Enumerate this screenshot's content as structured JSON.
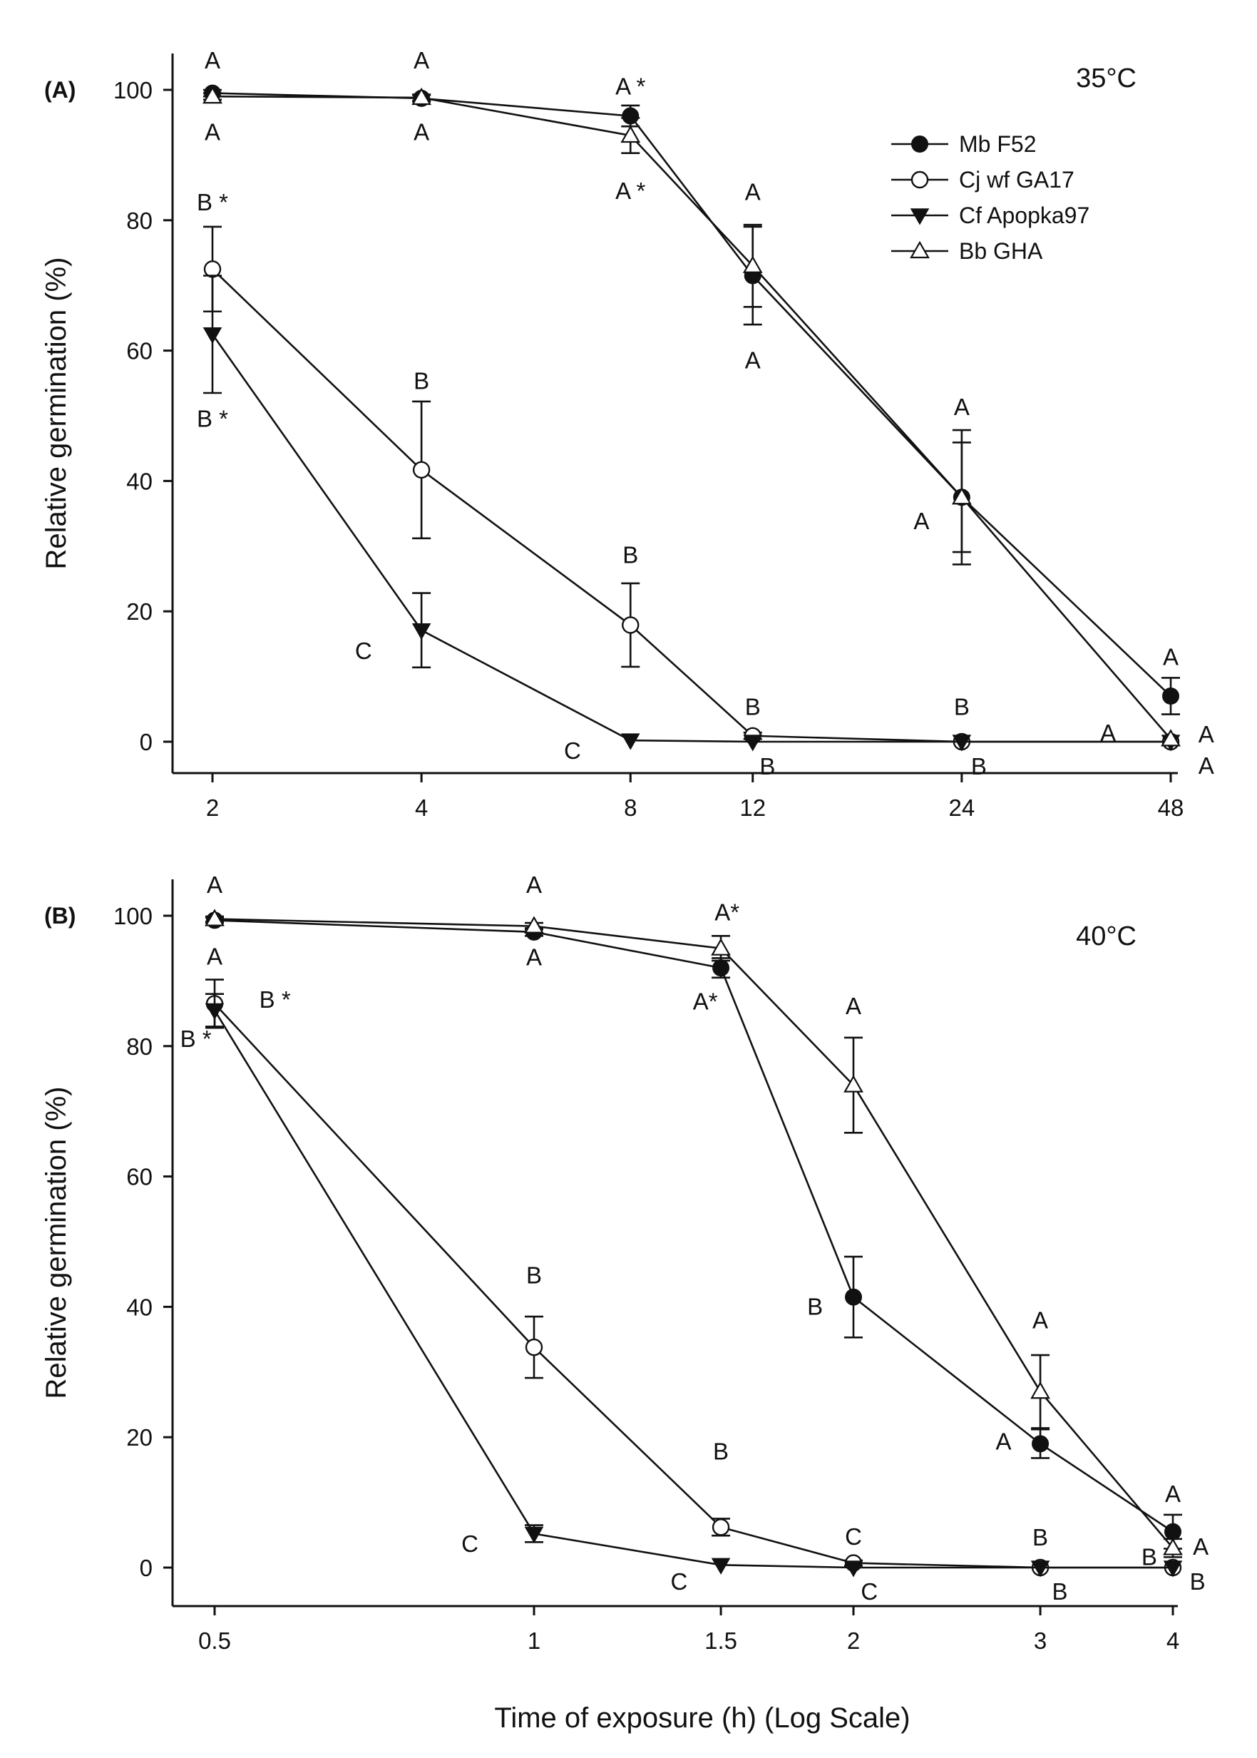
{
  "figure": {
    "xlabel": "Time of exposure (h) (Log Scale)",
    "legend": {
      "position": "top-right of panel A",
      "entries": [
        {
          "name": "Mb F52",
          "marker": "filled-circle"
        },
        {
          "name": "Cj wf GA17",
          "marker": "open-circle"
        },
        {
          "name": "Cf Apopka97",
          "marker": "filled-triangle-down"
        },
        {
          "name": "Bb GHA",
          "marker": "open-triangle-up"
        }
      ]
    }
  },
  "chart_data": [
    {
      "type": "line",
      "panel_label": "(A)",
      "temperature": "35°C",
      "ylabel": "Relative germination (%)",
      "xscale": "log",
      "xlim": [
        1.78,
        57
      ],
      "ylim": [
        -5,
        104
      ],
      "x": [
        2,
        4,
        8,
        12,
        24,
        48
      ],
      "x_tick_labels": [
        "2",
        "4",
        "8",
        "12",
        "24",
        "48"
      ],
      "y_ticks": [
        0,
        20,
        40,
        60,
        80,
        100
      ],
      "y_tick_labels": [
        "0",
        "20",
        "40",
        "60",
        "80",
        "100"
      ],
      "series": [
        {
          "name": "Mb F52",
          "marker": "filled-circle",
          "values": [
            99.5,
            98.7,
            96,
            71.5,
            37.5,
            7
          ],
          "errors": [
            0.5,
            0.5,
            1.6,
            7.5,
            10.3,
            2.8
          ]
        },
        {
          "name": "Cj wf GA17",
          "marker": "open-circle",
          "values": [
            72.5,
            41.7,
            17.9,
            0.9,
            0,
            0
          ],
          "errors": [
            6.5,
            10.5,
            6.4,
            0.5,
            0,
            0
          ]
        },
        {
          "name": "Cf Apopka97",
          "marker": "filled-triangle-down",
          "values": [
            62.5,
            17.1,
            0.2,
            0,
            0,
            0
          ],
          "errors": [
            9,
            5.7,
            0,
            0,
            0,
            0
          ]
        },
        {
          "name": "Bb GHA",
          "marker": "open-triangle-up",
          "values": [
            99,
            98.8,
            93,
            73,
            37.5,
            0.4
          ],
          "errors": [
            0.5,
            0.5,
            2.7,
            6.3,
            8.4,
            0
          ]
        }
      ],
      "annotations": [
        {
          "text": "A",
          "x": 2,
          "y": 104.6
        },
        {
          "text": "A",
          "x": 2,
          "y": 93.6
        },
        {
          "text": "B *",
          "x": 2,
          "y": 82.8
        },
        {
          "text": "B *",
          "x": 2,
          "y": 49.6
        },
        {
          "text": "A",
          "x": 4,
          "y": 104.6
        },
        {
          "text": "A",
          "x": 4,
          "y": 93.6
        },
        {
          "text": "B",
          "x": 4,
          "y": 55.4
        },
        {
          "text": "C",
          "x": 3.3,
          "y": 14
        },
        {
          "text": "A *",
          "x": 8,
          "y": 100.6
        },
        {
          "text": "A *",
          "x": 8,
          "y": 84.6
        },
        {
          "text": "B",
          "x": 8,
          "y": 28.7
        },
        {
          "text": "C",
          "x": 6.6,
          "y": -1.3
        },
        {
          "text": "A",
          "x": 12,
          "y": 84.4
        },
        {
          "text": "A",
          "x": 12,
          "y": 58.6
        },
        {
          "text": "B",
          "x": 12,
          "y": 5.4
        },
        {
          "text": "B",
          "x": 12.6,
          "y": -3.7
        },
        {
          "text": "A",
          "x": 24,
          "y": 51.4
        },
        {
          "text": "A",
          "x": 21,
          "y": 33.9
        },
        {
          "text": "B",
          "x": 24,
          "y": 5.4
        },
        {
          "text": "B",
          "x": 25.4,
          "y": -3.7
        },
        {
          "text": "A",
          "x": 48,
          "y": 13.1
        },
        {
          "text": "A",
          "x": 39,
          "y": 1.4
        },
        {
          "text": "A",
          "x": 54,
          "y": 1.2
        },
        {
          "text": "A",
          "x": 54,
          "y": -3.6
        }
      ]
    },
    {
      "type": "line",
      "panel_label": "(B)",
      "temperature": "40°C",
      "ylabel": "Relative germination (%)",
      "xlabel": "Time of exposure (h) (Log Scale)",
      "xscale": "log",
      "xlim": [
        0.45,
        4.3
      ],
      "ylim": [
        -5,
        104
      ],
      "x": [
        0.5,
        1,
        1.5,
        2,
        3,
        4
      ],
      "x_tick_labels": [
        "0.5",
        "1",
        "1.5",
        "2",
        "3",
        "4"
      ],
      "y_ticks": [
        0,
        20,
        40,
        60,
        80,
        100
      ],
      "y_tick_labels": [
        "0",
        "20",
        "40",
        "60",
        "80",
        "100"
      ],
      "series": [
        {
          "name": "Mb F52",
          "marker": "filled-circle",
          "values": [
            99.3,
            97.5,
            92,
            41.5,
            19,
            5.5
          ],
          "errors": [
            0.4,
            0.6,
            1.5,
            6.2,
            2.2,
            2.6
          ]
        },
        {
          "name": "Cj wf GA17",
          "marker": "open-circle",
          "values": [
            86.5,
            33.8,
            6.2,
            0.7,
            0,
            0
          ],
          "errors": [
            3.7,
            4.7,
            1.3,
            0.4,
            0,
            0
          ]
        },
        {
          "name": "Cf Apopka97",
          "marker": "filled-triangle-down",
          "values": [
            85.5,
            5.2,
            0.4,
            0,
            0,
            0
          ],
          "errors": [
            2.5,
            1.3,
            0,
            0,
            0,
            0
          ]
        },
        {
          "name": "Bb GHA",
          "marker": "open-triangle-up",
          "values": [
            99.5,
            98.4,
            95,
            74,
            27,
            3
          ],
          "errors": [
            0.4,
            0.5,
            1.9,
            7.3,
            5.6,
            1.4
          ]
        }
      ],
      "annotations": [
        {
          "text": "A",
          "x": 0.5,
          "y": 104.8
        },
        {
          "text": "A",
          "x": 0.5,
          "y": 93.8
        },
        {
          "text": "B *",
          "x": 0.57,
          "y": 87.2
        },
        {
          "text": "B *",
          "x": 0.48,
          "y": 81.2
        },
        {
          "text": "A",
          "x": 1,
          "y": 104.8
        },
        {
          "text": "A",
          "x": 1,
          "y": 93.7
        },
        {
          "text": "B",
          "x": 1,
          "y": 44.9
        },
        {
          "text": "C",
          "x": 0.87,
          "y": 3.7
        },
        {
          "text": "A*",
          "x": 1.52,
          "y": 100.6
        },
        {
          "text": "A*",
          "x": 1.45,
          "y": 86.9
        },
        {
          "text": "B",
          "x": 1.5,
          "y": 17.9
        },
        {
          "text": "C",
          "x": 1.37,
          "y": -2.1
        },
        {
          "text": "A",
          "x": 2,
          "y": 86.2
        },
        {
          "text": "B",
          "x": 1.84,
          "y": 40.1
        },
        {
          "text": "C",
          "x": 2,
          "y": 4.8
        },
        {
          "text": "C",
          "x": 2.07,
          "y": -3.6
        },
        {
          "text": "A",
          "x": 3,
          "y": 38
        },
        {
          "text": "A",
          "x": 2.77,
          "y": 19.4
        },
        {
          "text": "B",
          "x": 3,
          "y": 4.7
        },
        {
          "text": "B",
          "x": 3.13,
          "y": -3.6
        },
        {
          "text": "A",
          "x": 4,
          "y": 11.4
        },
        {
          "text": "B",
          "x": 3.8,
          "y": 1.7
        },
        {
          "text": "A",
          "x": 4.25,
          "y": 3.3
        },
        {
          "text": "B",
          "x": 4.22,
          "y": -2.1
        }
      ]
    }
  ]
}
